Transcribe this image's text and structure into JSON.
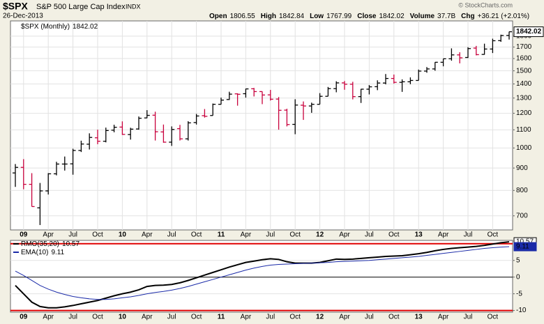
{
  "header": {
    "symbol": "$SPX",
    "name": "S&P 500 Large Cap Index",
    "exchange": "INDX",
    "date": "26-Dec-2013",
    "quote": [
      {
        "label": "Open",
        "value": "1806.55"
      },
      {
        "label": "High",
        "value": "1842.84"
      },
      {
        "label": "Low",
        "value": "1767.99"
      },
      {
        "label": "Close",
        "value": "1842.02"
      },
      {
        "label": "Volume",
        "value": "37.7B"
      },
      {
        "label": "Chg",
        "value": "+36.21 (+2.01%)"
      }
    ],
    "source": "© StockCharts.com"
  },
  "chart_data": [
    {
      "type": "ohlc",
      "series_name": "$SPX (Monthly)",
      "log_scale": true,
      "grid": true,
      "up_color": "#000000",
      "down_color": "#c8003c",
      "categories": [
        null,
        "09",
        null,
        null,
        "Apr",
        null,
        null,
        "Jul",
        null,
        null,
        "Oct",
        null,
        null,
        "10",
        null,
        null,
        "Apr",
        null,
        null,
        "Jul",
        null,
        null,
        "Oct",
        null,
        null,
        "11",
        null,
        null,
        "Apr",
        null,
        null,
        "Jul",
        null,
        null,
        "Oct",
        null,
        null,
        "12",
        null,
        null,
        "Apr",
        null,
        null,
        "Jul",
        null,
        null,
        "Oct",
        null,
        null,
        "13",
        null,
        null,
        "Apr",
        null,
        null,
        "Jul",
        null,
        null,
        "Oct",
        null,
        null
      ],
      "open": [
        877,
        903,
        826,
        730,
        798,
        873,
        919,
        920,
        987,
        1020,
        1055,
        1036,
        1098,
        1116,
        1073,
        1105,
        1171,
        1188,
        1088,
        1031,
        1107,
        1049,
        1143,
        1185,
        1186,
        1258,
        1290,
        1329,
        1330,
        1365,
        1345,
        1322,
        1293,
        1220,
        1132,
        1252,
        1247,
        1258,
        1312,
        1366,
        1408,
        1398,
        1310,
        1362,
        1380,
        1407,
        1441,
        1412,
        1416,
        1426,
        1498,
        1515,
        1569,
        1598,
        1631,
        1609,
        1690,
        1635,
        1682,
        1758,
        1806.55
      ],
      "high": [
        919,
        943,
        876,
        832,
        876,
        930,
        956,
        996,
        1039,
        1080,
        1101,
        1113,
        1130,
        1150,
        1112,
        1180,
        1220,
        1210,
        1131,
        1120,
        1129,
        1151,
        1196,
        1227,
        1263,
        1303,
        1344,
        1333,
        1366,
        1371,
        1346,
        1357,
        1307,
        1229,
        1292,
        1277,
        1269,
        1334,
        1378,
        1420,
        1422,
        1416,
        1364,
        1392,
        1427,
        1475,
        1471,
        1434,
        1449,
        1510,
        1530,
        1570,
        1598,
        1688,
        1654,
        1698,
        1710,
        1730,
        1776,
        1814,
        1842.84
      ],
      "low": [
        815,
        805,
        735,
        667,
        783,
        866,
        888,
        869,
        979,
        992,
        1020,
        1030,
        1086,
        1071,
        1045,
        1101,
        1170,
        1040,
        1028,
        1011,
        1040,
        1040,
        1131,
        1173,
        1186,
        1257,
        1287,
        1249,
        1303,
        1311,
        1259,
        1283,
        1101,
        1120,
        1075,
        1159,
        1203,
        1258,
        1312,
        1340,
        1358,
        1291,
        1267,
        1325,
        1355,
        1397,
        1403,
        1343,
        1398,
        1426,
        1485,
        1501,
        1536,
        1582,
        1560,
        1605,
        1627,
        1633,
        1647,
        1747,
        1767.99
      ],
      "close": [
        903,
        826,
        735,
        798,
        873,
        919,
        919,
        987,
        1021,
        1057,
        1036,
        1096,
        1115,
        1074,
        1104,
        1169,
        1187,
        1089,
        1031,
        1102,
        1049,
        1141,
        1183,
        1181,
        1258,
        1286,
        1327,
        1326,
        1364,
        1345,
        1321,
        1292,
        1219,
        1131,
        1253,
        1247,
        1258,
        1312,
        1366,
        1408,
        1398,
        1310,
        1362,
        1379,
        1407,
        1441,
        1412,
        1416,
        1426,
        1498,
        1515,
        1569,
        1598,
        1631,
        1606,
        1686,
        1633,
        1682,
        1757,
        1806,
        1842.02
      ],
      "ylim": [
        650,
        1950
      ],
      "yticks": [
        700,
        800,
        900,
        1000,
        1100,
        1200,
        1300,
        1400,
        1500,
        1600,
        1700,
        1800
      ]
    },
    {
      "type": "line",
      "grid": true,
      "thresholds": [
        10,
        -10
      ],
      "threshold_color": "#e00000",
      "series": [
        {
          "name": "RMO(35,20)",
          "color": "#000000",
          "values": [
            -2.5,
            -5,
            -7.5,
            -8.8,
            -9.2,
            -9.2,
            -8.9,
            -8.5,
            -8,
            -7.5,
            -7,
            -6.3,
            -5.6,
            -5,
            -4.5,
            -3.8,
            -2.8,
            -2.5,
            -2.4,
            -2.2,
            -1.7,
            -1,
            -0.2,
            0.6,
            1.4,
            2.2,
            3,
            3.7,
            4.4,
            4.8,
            5.2,
            5.5,
            5.3,
            4.6,
            4.2,
            4.2,
            4.2,
            4.4,
            4.9,
            5.4,
            5.3,
            5.4,
            5.6,
            5.8,
            6,
            6.2,
            6.3,
            6.4,
            6.7,
            7,
            7.4,
            7.9,
            8.3,
            8.6,
            8.8,
            9,
            9.2,
            9.5,
            9.9,
            10.3,
            10.57
          ]
        },
        {
          "name": "EMA(10)",
          "color": "#1a2aa8",
          "values": [
            1.8,
            0.5,
            -1,
            -2.5,
            -3.6,
            -4.5,
            -5.2,
            -5.8,
            -6.2,
            -6.5,
            -6.7,
            -6.7,
            -6.5,
            -6.2,
            -5.9,
            -5.5,
            -5,
            -4.6,
            -4.3,
            -3.9,
            -3.4,
            -2.8,
            -2.1,
            -1.4,
            -0.7,
            0,
            0.7,
            1.4,
            2.1,
            2.7,
            3.2,
            3.6,
            3.8,
            3.9,
            4,
            4.1,
            4.2,
            4.3,
            4.4,
            4.6,
            4.7,
            4.8,
            4.9,
            5,
            5.2,
            5.4,
            5.6,
            5.8,
            6,
            6.2,
            6.5,
            6.8,
            7.1,
            7.4,
            7.7,
            8,
            8.3,
            8.6,
            8.8,
            9,
            9.11
          ]
        }
      ],
      "ylim": [
        -10.5,
        11
      ],
      "yticks": [
        -10,
        -5,
        0,
        5
      ]
    }
  ]
}
